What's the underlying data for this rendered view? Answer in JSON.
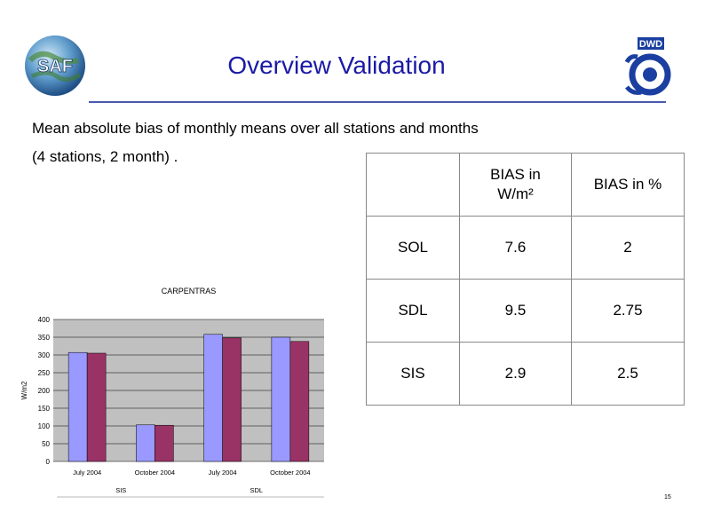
{
  "slide": {
    "title": "Overview Validation",
    "subtitle_line1": "Mean absolute bias of monthly means over all stations and months",
    "subtitle_line2": "(4 stations, 2 month) .",
    "page_number": "15",
    "logo_left_text": "SAF",
    "logo_right_text": "DWD"
  },
  "table": {
    "headers": [
      "",
      "BIAS in W/m²",
      "BIAS in %"
    ],
    "rows": [
      [
        "SOL",
        "7.6",
        "2"
      ],
      [
        "SDL",
        "9.5",
        "2.75"
      ],
      [
        "SIS",
        "2.9",
        "2.5"
      ]
    ]
  },
  "chart_data": {
    "type": "bar",
    "title": "CARPENTRAS",
    "ylabel": "W/m2",
    "xlabel": "",
    "ylim": [
      0,
      400
    ],
    "yticks": [
      0,
      50,
      100,
      150,
      200,
      250,
      300,
      350,
      400
    ],
    "categories": [
      "July 2004",
      "October 2004",
      "July 2004",
      "October 2004"
    ],
    "groups": [
      "SIS",
      "SDL"
    ],
    "series": [
      {
        "values": [
          307,
          103,
          358,
          350
        ],
        "color": "#9999ff"
      },
      {
        "values": [
          305,
          102,
          348,
          338
        ],
        "color": "#993366"
      }
    ],
    "grid": true,
    "plot_background": "#c0c0c0"
  }
}
